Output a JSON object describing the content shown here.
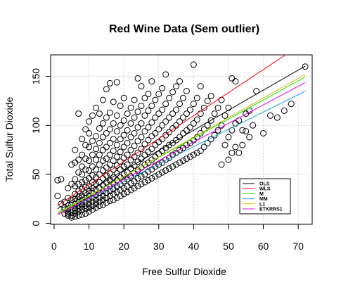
{
  "chart_data": {
    "type": "scatter",
    "title": "Red Wine Data (Sem outlier)",
    "xlabel": "Free Sulfur Dioxide",
    "ylabel": "Total Sulfur Dioxide",
    "xlim": [
      -1,
      74
    ],
    "ylim": [
      -1,
      172
    ],
    "xticks": [
      0,
      10,
      20,
      30,
      40,
      50,
      60,
      70
    ],
    "yticks": [
      0,
      50,
      100,
      150
    ],
    "xtick_labels": [
      "0",
      "10",
      "20",
      "30",
      "40",
      "50",
      "60",
      "70"
    ],
    "ytick_labels": [
      "0",
      "50",
      "100",
      "150"
    ],
    "grid": true,
    "legend_position": "bottom-right",
    "point_color": "#000000",
    "points": [
      [
        1,
        28
      ],
      [
        1,
        44
      ],
      [
        2,
        45
      ],
      [
        2,
        20
      ],
      [
        3,
        10
      ],
      [
        3,
        16
      ],
      [
        3,
        14
      ],
      [
        3,
        22
      ],
      [
        4,
        8
      ],
      [
        4,
        10
      ],
      [
        4,
        12
      ],
      [
        4,
        15
      ],
      [
        4,
        18
      ],
      [
        4,
        26
      ],
      [
        4,
        36
      ],
      [
        5,
        6
      ],
      [
        5,
        8
      ],
      [
        5,
        11
      ],
      [
        5,
        14
      ],
      [
        5,
        19
      ],
      [
        5,
        24
      ],
      [
        5,
        40
      ],
      [
        5,
        60
      ],
      [
        6,
        7
      ],
      [
        6,
        10
      ],
      [
        6,
        13
      ],
      [
        6,
        16
      ],
      [
        6,
        20
      ],
      [
        6,
        25
      ],
      [
        6,
        30
      ],
      [
        6,
        38
      ],
      [
        6,
        45
      ],
      [
        6,
        62
      ],
      [
        6,
        75
      ],
      [
        7,
        8
      ],
      [
        7,
        12
      ],
      [
        7,
        15
      ],
      [
        7,
        18
      ],
      [
        7,
        22
      ],
      [
        7,
        27
      ],
      [
        7,
        33
      ],
      [
        7,
        40
      ],
      [
        7,
        52
      ],
      [
        7,
        65
      ],
      [
        7,
        112
      ],
      [
        8,
        9
      ],
      [
        8,
        14
      ],
      [
        8,
        17
      ],
      [
        8,
        20
      ],
      [
        8,
        24
      ],
      [
        8,
        28
      ],
      [
        8,
        35
      ],
      [
        8,
        42
      ],
      [
        8,
        50
      ],
      [
        8,
        58
      ],
      [
        8,
        70
      ],
      [
        8,
        86
      ],
      [
        9,
        10
      ],
      [
        9,
        15
      ],
      [
        9,
        18
      ],
      [
        9,
        22
      ],
      [
        9,
        26
      ],
      [
        9,
        31
      ],
      [
        9,
        37
      ],
      [
        9,
        44
      ],
      [
        9,
        55
      ],
      [
        9,
        66
      ],
      [
        9,
        80
      ],
      [
        9,
        96
      ],
      [
        10,
        12
      ],
      [
        10,
        16
      ],
      [
        10,
        20
      ],
      [
        10,
        24
      ],
      [
        10,
        28
      ],
      [
        10,
        33
      ],
      [
        10,
        38
      ],
      [
        10,
        46
      ],
      [
        10,
        54
      ],
      [
        10,
        64
      ],
      [
        10,
        78
      ],
      [
        10,
        92
      ],
      [
        10,
        104
      ],
      [
        11,
        14
      ],
      [
        11,
        18
      ],
      [
        11,
        22
      ],
      [
        11,
        26
      ],
      [
        11,
        31
      ],
      [
        11,
        36
      ],
      [
        11,
        42
      ],
      [
        11,
        49
      ],
      [
        11,
        58
      ],
      [
        11,
        70
      ],
      [
        11,
        84
      ],
      [
        11,
        110
      ],
      [
        12,
        16
      ],
      [
        12,
        20
      ],
      [
        12,
        24
      ],
      [
        12,
        29
      ],
      [
        12,
        34
      ],
      [
        12,
        40
      ],
      [
        12,
        47
      ],
      [
        12,
        55
      ],
      [
        12,
        65
      ],
      [
        12,
        76
      ],
      [
        12,
        89
      ],
      [
        12,
        118
      ],
      [
        13,
        18
      ],
      [
        13,
        22
      ],
      [
        13,
        26
      ],
      [
        13,
        31
      ],
      [
        13,
        36
      ],
      [
        13,
        42
      ],
      [
        13,
        50
      ],
      [
        13,
        60
      ],
      [
        13,
        70
      ],
      [
        13,
        82
      ],
      [
        13,
        97
      ],
      [
        13,
        112
      ],
      [
        14,
        19
      ],
      [
        14,
        24
      ],
      [
        14,
        28
      ],
      [
        14,
        33
      ],
      [
        14,
        39
      ],
      [
        14,
        46
      ],
      [
        14,
        54
      ],
      [
        14,
        64
      ],
      [
        14,
        75
      ],
      [
        14,
        88
      ],
      [
        14,
        102
      ],
      [
        14,
        126
      ],
      [
        15,
        21
      ],
      [
        15,
        26
      ],
      [
        15,
        31
      ],
      [
        15,
        36
      ],
      [
        15,
        42
      ],
      [
        15,
        49
      ],
      [
        15,
        57
      ],
      [
        15,
        66
      ],
      [
        15,
        78
      ],
      [
        15,
        92
      ],
      [
        15,
        108
      ],
      [
        15,
        137
      ],
      [
        16,
        23
      ],
      [
        16,
        28
      ],
      [
        16,
        33
      ],
      [
        16,
        38
      ],
      [
        16,
        44
      ],
      [
        16,
        51
      ],
      [
        16,
        60
      ],
      [
        16,
        70
      ],
      [
        16,
        82
      ],
      [
        16,
        96
      ],
      [
        16,
        113
      ],
      [
        16,
        143
      ],
      [
        17,
        24
      ],
      [
        17,
        30
      ],
      [
        17,
        35
      ],
      [
        17,
        41
      ],
      [
        17,
        47
      ],
      [
        17,
        55
      ],
      [
        17,
        64
      ],
      [
        17,
        74
      ],
      [
        17,
        86
      ],
      [
        17,
        102
      ],
      [
        17,
        124
      ],
      [
        18,
        26
      ],
      [
        18,
        32
      ],
      [
        18,
        38
      ],
      [
        18,
        44
      ],
      [
        18,
        51
      ],
      [
        18,
        59
      ],
      [
        18,
        68
      ],
      [
        18,
        80
      ],
      [
        18,
        94
      ],
      [
        18,
        110
      ],
      [
        18,
        144
      ],
      [
        19,
        28
      ],
      [
        19,
        34
      ],
      [
        19,
        40
      ],
      [
        19,
        47
      ],
      [
        19,
        55
      ],
      [
        19,
        63
      ],
      [
        19,
        73
      ],
      [
        19,
        86
      ],
      [
        19,
        100
      ],
      [
        19,
        120
      ],
      [
        20,
        30
      ],
      [
        20,
        36
      ],
      [
        20,
        43
      ],
      [
        20,
        50
      ],
      [
        20,
        58
      ],
      [
        20,
        67
      ],
      [
        20,
        78
      ],
      [
        20,
        90
      ],
      [
        20,
        105
      ],
      [
        20,
        128
      ],
      [
        21,
        32
      ],
      [
        21,
        38
      ],
      [
        21,
        45
      ],
      [
        21,
        52
      ],
      [
        21,
        60
      ],
      [
        21,
        70
      ],
      [
        21,
        82
      ],
      [
        21,
        95
      ],
      [
        21,
        112
      ],
      [
        22,
        34
      ],
      [
        22,
        41
      ],
      [
        22,
        48
      ],
      [
        22,
        56
      ],
      [
        22,
        65
      ],
      [
        22,
        75
      ],
      [
        22,
        88
      ],
      [
        22,
        102
      ],
      [
        22,
        118
      ],
      [
        23,
        36
      ],
      [
        23,
        43
      ],
      [
        23,
        51
      ],
      [
        23,
        59
      ],
      [
        23,
        68
      ],
      [
        23,
        79
      ],
      [
        23,
        92
      ],
      [
        23,
        108
      ],
      [
        23,
        126
      ],
      [
        24,
        38
      ],
      [
        24,
        46
      ],
      [
        24,
        54
      ],
      [
        24,
        63
      ],
      [
        24,
        72
      ],
      [
        24,
        84
      ],
      [
        24,
        98
      ],
      [
        24,
        114
      ],
      [
        24,
        148
      ],
      [
        25,
        40
      ],
      [
        25,
        48
      ],
      [
        25,
        57
      ],
      [
        25,
        66
      ],
      [
        25,
        76
      ],
      [
        25,
        88
      ],
      [
        25,
        102
      ],
      [
        25,
        120
      ],
      [
        25,
        140
      ],
      [
        26,
        42
      ],
      [
        26,
        50
      ],
      [
        26,
        60
      ],
      [
        26,
        70
      ],
      [
        26,
        81
      ],
      [
        26,
        94
      ],
      [
        26,
        110
      ],
      [
        26,
        128
      ],
      [
        27,
        44
      ],
      [
        27,
        53
      ],
      [
        27,
        62
      ],
      [
        27,
        73
      ],
      [
        27,
        85
      ],
      [
        27,
        98
      ],
      [
        27,
        115
      ],
      [
        27,
        132
      ],
      [
        28,
        46
      ],
      [
        28,
        55
      ],
      [
        28,
        65
      ],
      [
        28,
        76
      ],
      [
        28,
        89
      ],
      [
        28,
        103
      ],
      [
        28,
        120
      ],
      [
        28,
        145
      ],
      [
        29,
        48
      ],
      [
        29,
        58
      ],
      [
        29,
        68
      ],
      [
        29,
        80
      ],
      [
        29,
        92
      ],
      [
        29,
        108
      ],
      [
        29,
        126
      ],
      [
        30,
        50
      ],
      [
        30,
        60
      ],
      [
        30,
        71
      ],
      [
        30,
        83
      ],
      [
        30,
        96
      ],
      [
        30,
        112
      ],
      [
        30,
        132
      ],
      [
        31,
        52
      ],
      [
        31,
        62
      ],
      [
        31,
        74
      ],
      [
        31,
        86
      ],
      [
        31,
        100
      ],
      [
        31,
        116
      ],
      [
        31,
        138
      ],
      [
        32,
        54
      ],
      [
        32,
        65
      ],
      [
        32,
        77
      ],
      [
        32,
        90
      ],
      [
        32,
        104
      ],
      [
        32,
        122
      ],
      [
        32,
        152
      ],
      [
        33,
        56
      ],
      [
        33,
        67
      ],
      [
        33,
        80
      ],
      [
        33,
        93
      ],
      [
        33,
        108
      ],
      [
        33,
        128
      ],
      [
        34,
        58
      ],
      [
        34,
        70
      ],
      [
        34,
        82
      ],
      [
        34,
        97
      ],
      [
        34,
        112
      ],
      [
        34,
        134
      ],
      [
        35,
        60
      ],
      [
        35,
        72
      ],
      [
        35,
        85
      ],
      [
        35,
        100
      ],
      [
        35,
        116
      ],
      [
        35,
        140
      ],
      [
        36,
        62
      ],
      [
        36,
        75
      ],
      [
        36,
        88
      ],
      [
        36,
        104
      ],
      [
        36,
        122
      ],
      [
        36,
        145
      ],
      [
        37,
        64
      ],
      [
        37,
        77
      ],
      [
        37,
        92
      ],
      [
        37,
        108
      ],
      [
        37,
        128
      ],
      [
        38,
        66
      ],
      [
        38,
        80
      ],
      [
        38,
        95
      ],
      [
        38,
        112
      ],
      [
        38,
        135
      ],
      [
        39,
        68
      ],
      [
        39,
        82
      ],
      [
        39,
        98
      ],
      [
        39,
        116
      ],
      [
        40,
        70
      ],
      [
        40,
        85
      ],
      [
        40,
        102
      ],
      [
        40,
        122
      ],
      [
        40,
        162
      ],
      [
        41,
        72
      ],
      [
        41,
        88
      ],
      [
        41,
        106
      ],
      [
        41,
        128
      ],
      [
        42,
        74
      ],
      [
        42,
        92
      ],
      [
        42,
        112
      ],
      [
        42,
        140
      ],
      [
        43,
        78
      ],
      [
        43,
        96
      ],
      [
        43,
        118
      ],
      [
        44,
        82
      ],
      [
        44,
        100
      ],
      [
        44,
        125
      ],
      [
        45,
        86
      ],
      [
        45,
        105
      ],
      [
        45,
        130
      ],
      [
        46,
        90
      ],
      [
        46,
        112
      ],
      [
        47,
        95
      ],
      [
        47,
        118
      ],
      [
        48,
        60
      ],
      [
        48,
        100
      ],
      [
        48,
        126
      ],
      [
        49,
        80
      ],
      [
        49,
        110
      ],
      [
        50,
        65
      ],
      [
        50,
        88
      ],
      [
        50,
        118
      ],
      [
        51,
        72
      ],
      [
        51,
        95
      ],
      [
        51,
        148
      ],
      [
        52,
        78
      ],
      [
        52,
        102
      ],
      [
        52,
        145
      ],
      [
        53,
        72
      ],
      [
        53,
        105
      ],
      [
        54,
        80
      ],
      [
        54,
        95
      ],
      [
        55,
        94
      ],
      [
        55,
        112
      ],
      [
        56,
        88
      ],
      [
        56,
        115
      ],
      [
        57,
        100
      ],
      [
        58,
        135
      ],
      [
        60,
        92
      ],
      [
        62,
        110
      ],
      [
        64,
        108
      ],
      [
        66,
        115
      ],
      [
        68,
        122
      ],
      [
        72,
        160
      ]
    ],
    "lines": [
      {
        "name": "OLS",
        "color": "#000000",
        "intercept": 13.0,
        "slope": 2.05
      },
      {
        "name": "WLS",
        "color": "#FF0000",
        "intercept": 16.0,
        "slope": 2.35
      },
      {
        "name": "M",
        "color": "#22DD22",
        "intercept": 9.0,
        "slope": 1.95
      },
      {
        "name": "MM",
        "color": "#2299DD",
        "intercept": 7.5,
        "slope": 1.77
      },
      {
        "name": "L1",
        "color": "#E0C000",
        "intercept": 8.0,
        "slope": 2.0
      },
      {
        "name": "ETKRRS1",
        "color": "#EE00EE",
        "intercept": 7.0,
        "slope": 1.9
      }
    ]
  }
}
